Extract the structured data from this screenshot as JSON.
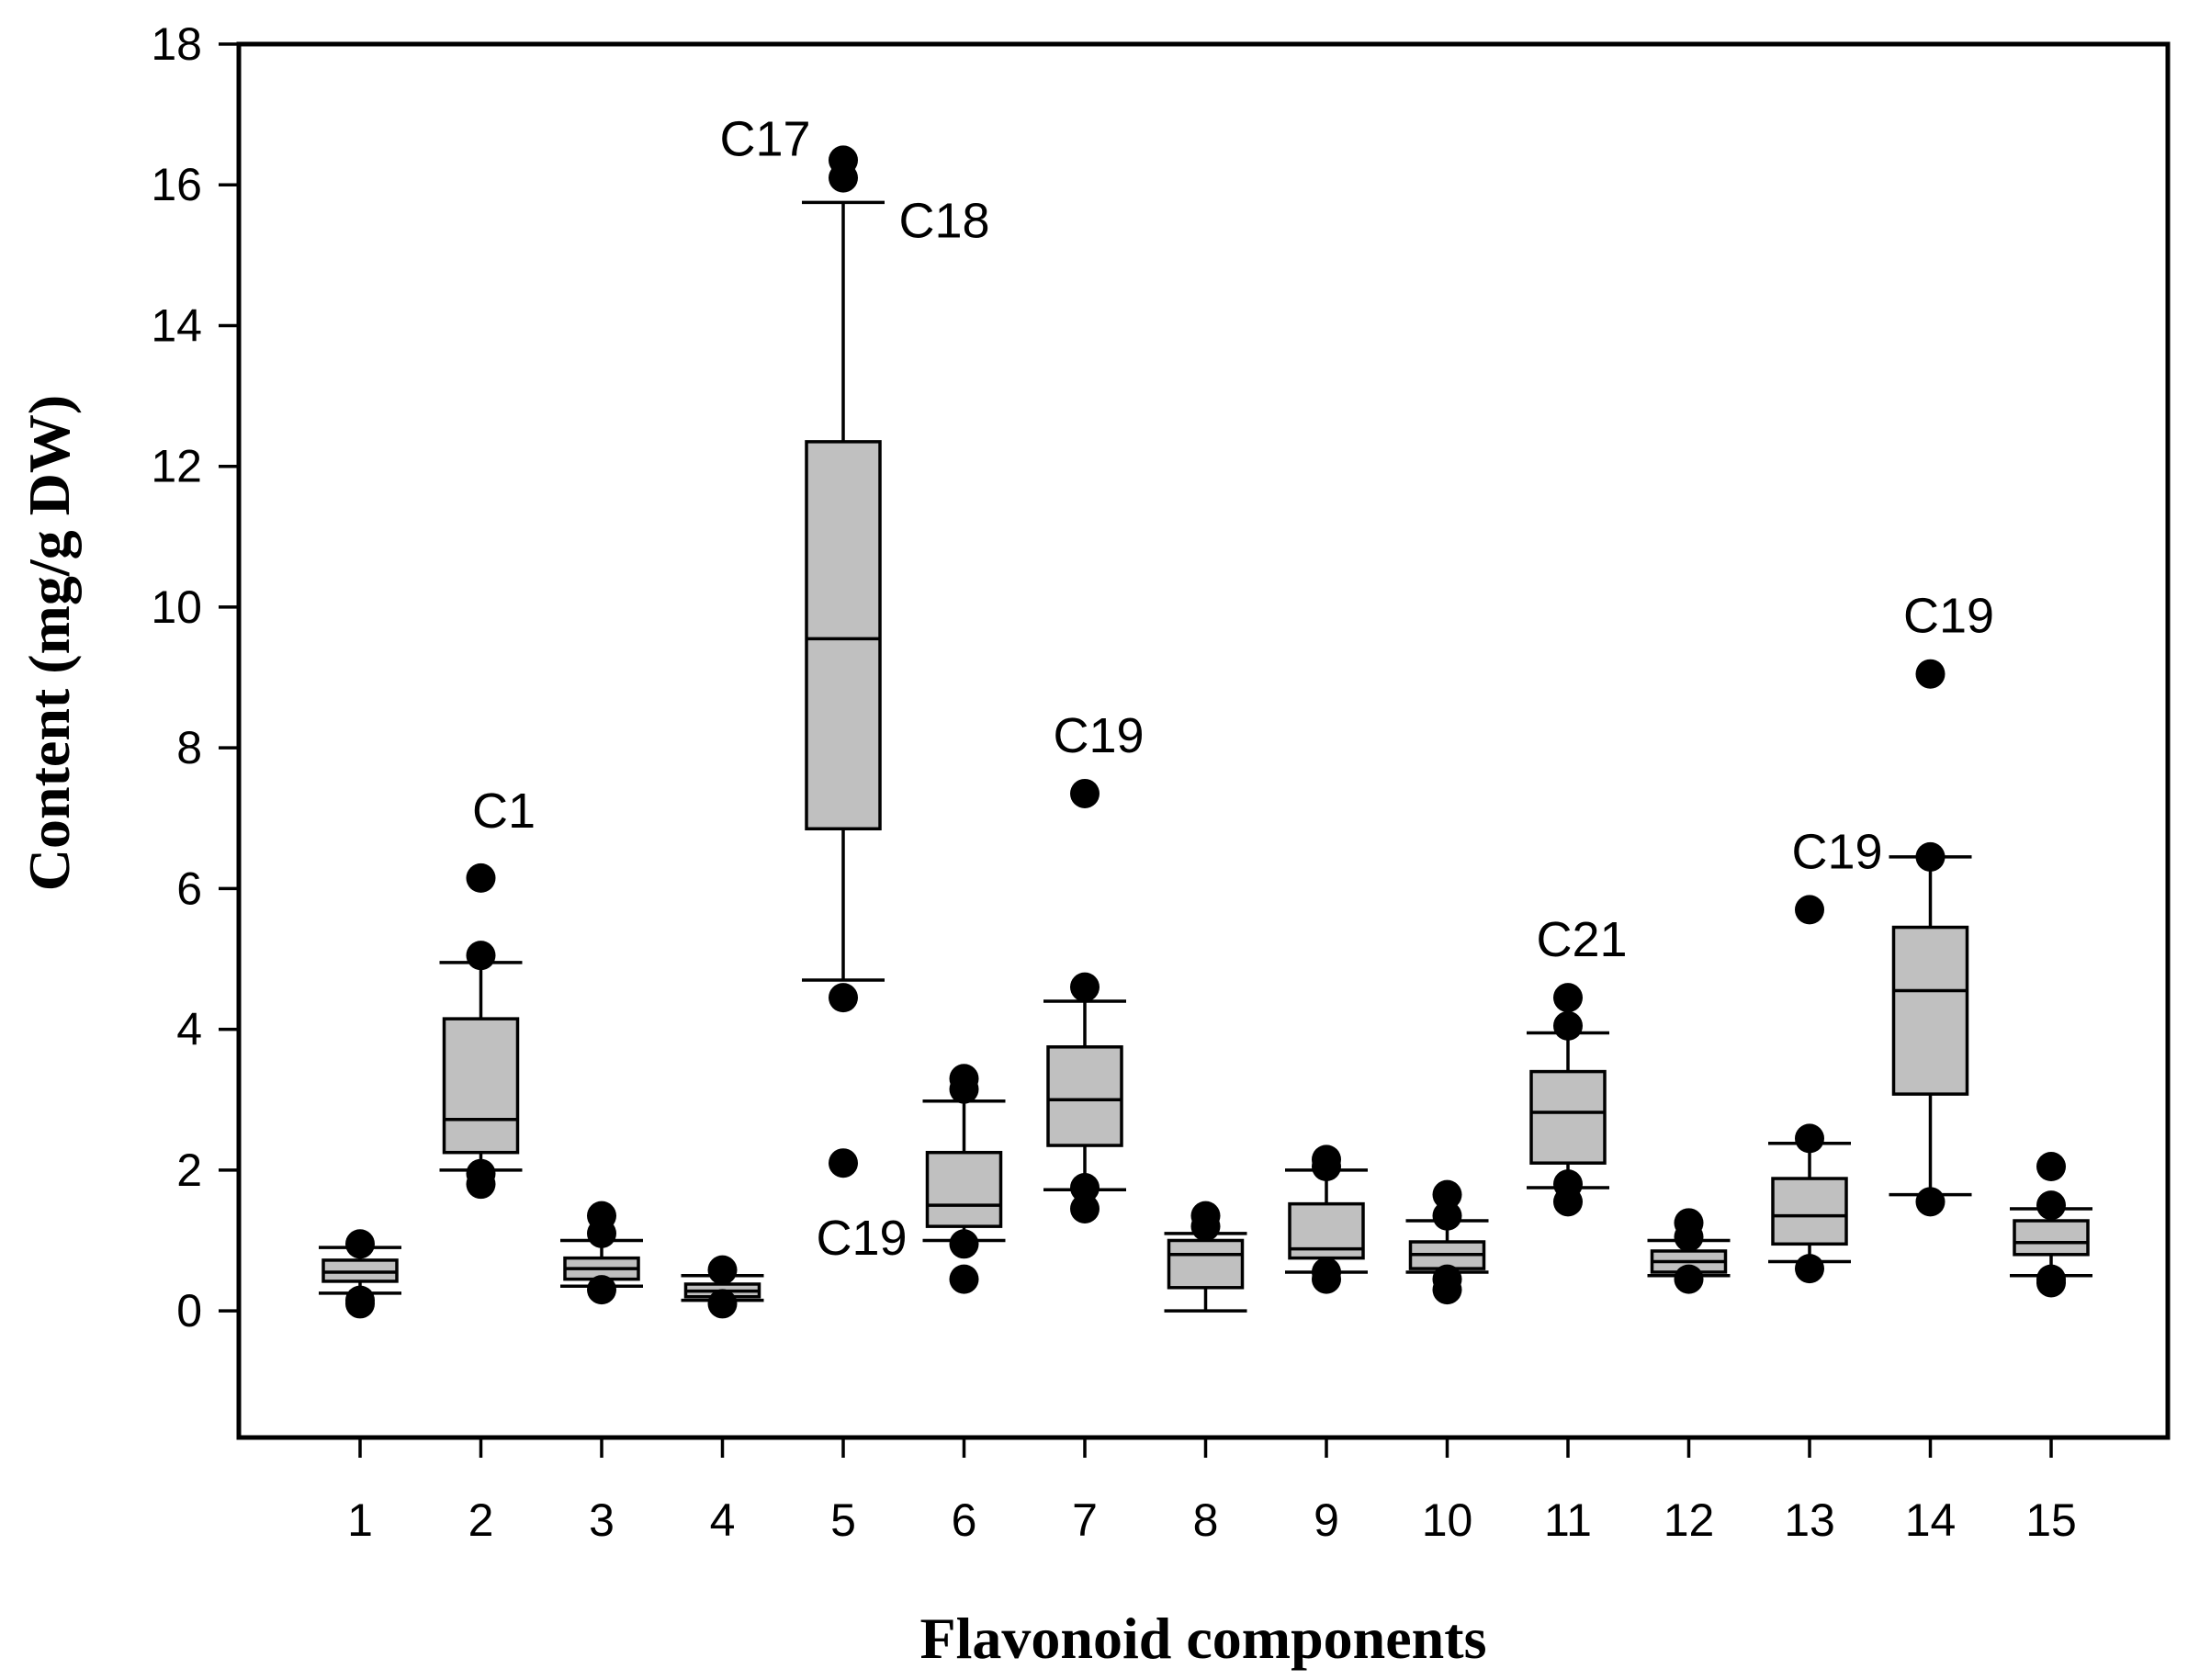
{
  "chart_data": {
    "type": "box",
    "title": "",
    "xlabel": "Flavonoid components",
    "ylabel": "Content (mg/g DW)",
    "ylim": [
      -1.8,
      18
    ],
    "yticks": [
      0,
      2,
      4,
      6,
      8,
      10,
      12,
      14,
      16,
      18
    ],
    "categories": [
      "1",
      "2",
      "3",
      "4",
      "5",
      "6",
      "7",
      "8",
      "9",
      "10",
      "11",
      "12",
      "13",
      "14",
      "15"
    ],
    "boxes": [
      {
        "category": "1",
        "whisker_low": 0.25,
        "q1": 0.42,
        "median": 0.55,
        "q3": 0.72,
        "whisker_high": 0.9,
        "outliers": [
          0.1,
          0.15,
          0.95
        ]
      },
      {
        "category": "2",
        "whisker_low": 2.0,
        "q1": 2.25,
        "median": 2.72,
        "q3": 4.15,
        "whisker_high": 4.95,
        "outliers": [
          1.8,
          1.95,
          5.05,
          6.15
        ]
      },
      {
        "category": "3",
        "whisker_low": 0.35,
        "q1": 0.45,
        "median": 0.6,
        "q3": 0.75,
        "whisker_high": 1.0,
        "outliers": [
          0.3,
          1.1,
          1.35
        ]
      },
      {
        "category": "4",
        "whisker_low": 0.15,
        "q1": 0.2,
        "median": 0.28,
        "q3": 0.38,
        "whisker_high": 0.5,
        "outliers": [
          0.1,
          0.58
        ]
      },
      {
        "category": "5",
        "whisker_low": 4.7,
        "q1": 6.85,
        "median": 9.55,
        "q3": 12.35,
        "whisker_high": 15.75,
        "outliers": [
          2.1,
          4.45,
          16.1,
          16.35
        ]
      },
      {
        "category": "6",
        "whisker_low": 1.0,
        "q1": 1.2,
        "median": 1.5,
        "q3": 2.25,
        "whisker_high": 2.98,
        "outliers": [
          0.45,
          0.95,
          3.15,
          3.3
        ]
      },
      {
        "category": "7",
        "whisker_low": 1.72,
        "q1": 2.35,
        "median": 3.0,
        "q3": 3.75,
        "whisker_high": 4.4,
        "outliers": [
          1.45,
          1.75,
          4.6,
          7.35
        ]
      },
      {
        "category": "8",
        "whisker_low": 0.0,
        "q1": 0.33,
        "median": 0.8,
        "q3": 1.0,
        "whisker_high": 1.1,
        "outliers": [
          1.2,
          1.35
        ]
      },
      {
        "category": "9",
        "whisker_low": 0.55,
        "q1": 0.75,
        "median": 0.88,
        "q3": 1.52,
        "whisker_high": 2.0,
        "outliers": [
          0.45,
          0.55,
          2.05,
          2.15
        ]
      },
      {
        "category": "10",
        "whisker_low": 0.55,
        "q1": 0.6,
        "median": 0.8,
        "q3": 0.98,
        "whisker_high": 1.28,
        "outliers": [
          0.3,
          0.45,
          1.35,
          1.65
        ]
      },
      {
        "category": "11",
        "whisker_low": 1.75,
        "q1": 2.1,
        "median": 2.82,
        "q3": 3.4,
        "whisker_high": 3.95,
        "outliers": [
          1.55,
          1.8,
          4.05,
          4.45
        ]
      },
      {
        "category": "12",
        "whisker_low": 0.5,
        "q1": 0.55,
        "median": 0.7,
        "q3": 0.85,
        "whisker_high": 1.0,
        "outliers": [
          0.45,
          1.05,
          1.25
        ]
      },
      {
        "category": "13",
        "whisker_low": 0.7,
        "q1": 0.95,
        "median": 1.35,
        "q3": 1.88,
        "whisker_high": 2.38,
        "outliers": [
          0.6,
          2.45,
          5.7
        ]
      },
      {
        "category": "14",
        "whisker_low": 1.65,
        "q1": 3.08,
        "median": 4.55,
        "q3": 5.45,
        "whisker_high": 6.45,
        "outliers": [
          1.55,
          6.45,
          9.05
        ]
      },
      {
        "category": "15",
        "whisker_low": 0.5,
        "q1": 0.8,
        "median": 0.97,
        "q3": 1.28,
        "whisker_high": 1.45,
        "outliers": [
          0.4,
          0.45,
          1.5,
          2.05
        ]
      }
    ],
    "annotations": [
      {
        "text": "C1",
        "category": "2",
        "y": 6.15
      },
      {
        "text": "C17",
        "category": "5",
        "y": 16.35
      },
      {
        "text": "C18",
        "category": "5",
        "y": 16.1
      },
      {
        "text": "C19",
        "category": "5",
        "y": 2.1
      },
      {
        "text": "C19",
        "category": "7",
        "y": 7.35
      },
      {
        "text": "C21",
        "category": "11",
        "y": 4.45
      },
      {
        "text": "C19",
        "category": "13",
        "y": 5.7
      },
      {
        "text": "C19",
        "category": "14",
        "y": 9.05
      }
    ]
  }
}
